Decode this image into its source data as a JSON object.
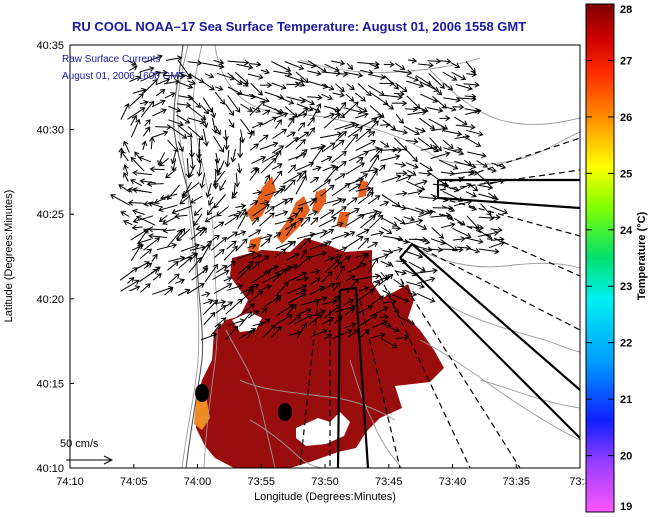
{
  "title": "RU COOL  NOAA–17  Sea Surface Temperature:  August 01, 2006 1558 GMT",
  "overlay": {
    "line1": "Raw Surface Currents",
    "line2": "August 01, 2006 1600 GMT"
  },
  "scale": {
    "label": "50 cm/s"
  },
  "axes": {
    "xlabel": "Longitude (Degrees:Minutes)",
    "ylabel": "Latitude (Degrees:Minutes)",
    "x_ticks": [
      "74:10",
      "74:05",
      "74:00",
      "73:55",
      "73:50",
      "73:45",
      "73:40",
      "73:35",
      "73:3"
    ],
    "y_ticks": [
      "40:35",
      "40:30",
      "40:25",
      "40:20",
      "40:15",
      "40:10"
    ]
  },
  "colorbar": {
    "label": "Temperature (°C)",
    "ticks": [
      "28",
      "27",
      "26",
      "25",
      "24",
      "23",
      "22",
      "21",
      "20",
      "19"
    ],
    "min": 19,
    "max": 28
  },
  "colors": {
    "title": "#1a1aa0",
    "sst_warm": "#9a0d0d",
    "sst_orange": "#e5611d",
    "land": "#ffffff"
  }
}
